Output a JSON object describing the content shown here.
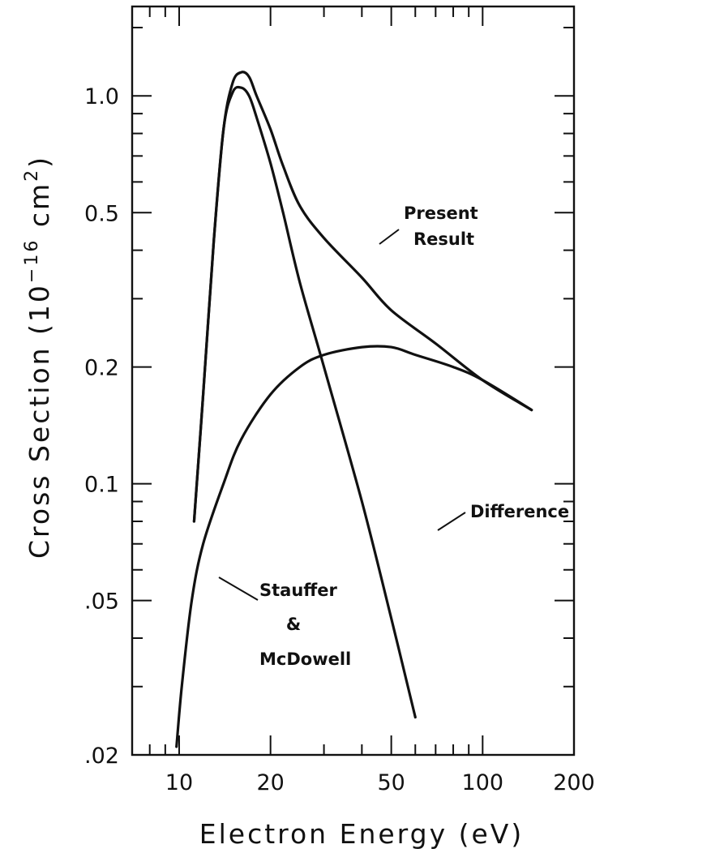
{
  "chart_data": {
    "type": "line",
    "title": "",
    "xlabel": "Electron Energy (eV)",
    "ylabel_main": "Cross Section (10",
    "ylabel_exp_neg": "−16",
    "ylabel_unit": " cm",
    "ylabel_unit_exp": "2",
    "ylabel_close": ")",
    "xscale": "log",
    "yscale": "log",
    "xlim": [
      7,
      200
    ],
    "ylim": [
      0.02,
      1.7
    ],
    "grid": false,
    "x_ticks": [
      {
        "value": 10,
        "label": "10"
      },
      {
        "value": 20,
        "label": "20"
      },
      {
        "value": 50,
        "label": "50"
      },
      {
        "value": 100,
        "label": "100"
      },
      {
        "value": 200,
        "label": "200"
      }
    ],
    "y_ticks": [
      {
        "value": 0.02,
        "label": ".02"
      },
      {
        "value": 0.05,
        "label": ".05"
      },
      {
        "value": 0.1,
        "label": "0.1"
      },
      {
        "value": 0.2,
        "label": "0.2"
      },
      {
        "value": 0.5,
        "label": "0.5"
      },
      {
        "value": 1.0,
        "label": "1.0"
      }
    ],
    "series": [
      {
        "name": "Present Result",
        "x": [
          11.2,
          12,
          13,
          14,
          15,
          16,
          17,
          18,
          20,
          22,
          25,
          30,
          40,
          50,
          70,
          100,
          145
        ],
        "y": [
          0.08,
          0.17,
          0.42,
          0.82,
          1.08,
          1.15,
          1.12,
          1.0,
          0.82,
          0.66,
          0.52,
          0.43,
          0.34,
          0.28,
          0.23,
          0.185,
          0.155
        ]
      },
      {
        "name": "Stauffer & McDowell",
        "x": [
          11.2,
          12,
          13,
          14,
          15,
          16,
          17,
          18,
          20,
          22,
          25,
          30,
          40,
          50,
          60
        ],
        "y": [
          0.08,
          0.17,
          0.42,
          0.82,
          1.02,
          1.05,
          1.0,
          0.88,
          0.67,
          0.5,
          0.33,
          0.2,
          0.09,
          0.045,
          0.025
        ]
      },
      {
        "name": "Difference",
        "x": [
          9.8,
          10.2,
          11,
          12,
          14,
          16,
          20,
          25,
          30,
          40,
          50,
          60,
          80,
          100,
          145
        ],
        "y": [
          0.021,
          0.03,
          0.05,
          0.07,
          0.1,
          0.13,
          0.17,
          0.2,
          0.215,
          0.225,
          0.225,
          0.215,
          0.2,
          0.185,
          0.155
        ]
      }
    ],
    "annotations": [
      {
        "lines": [
          "Present",
          "Result"
        ]
      },
      {
        "lines": [
          "Difference"
        ]
      },
      {
        "lines": [
          "Stauffer",
          "&",
          "McDowell"
        ]
      }
    ]
  }
}
